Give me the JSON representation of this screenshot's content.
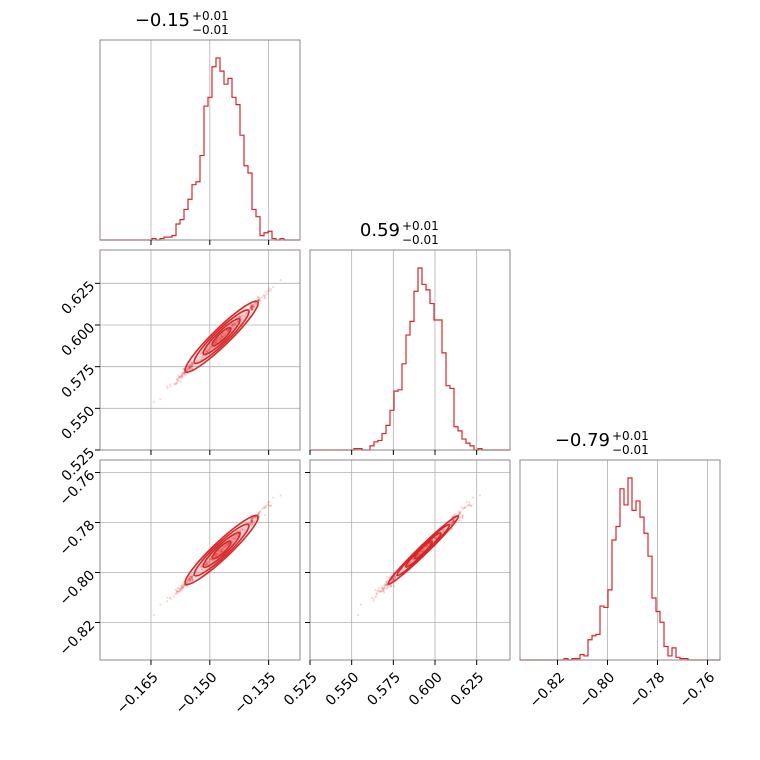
{
  "chart_data": {
    "type": "corner",
    "color": "#d62728",
    "grid": true,
    "parameters": [
      {
        "title": "−0.15",
        "title_plus": "+0.01",
        "title_minus": "−0.01",
        "range": [
          -0.178,
          -0.127
        ],
        "ticks": [
          -0.165,
          -0.15,
          -0.135
        ],
        "tick_labels": [
          "−0.165",
          "−0.150",
          "−0.135"
        ],
        "center": -0.147,
        "sigma": 0.0046
      },
      {
        "title": "0.59",
        "title_plus": "+0.01",
        "title_minus": "−0.01",
        "range": [
          0.525,
          0.645
        ],
        "ticks": [
          0.525,
          0.55,
          0.575,
          0.6,
          0.625
        ],
        "tick_labels": [
          "0.525",
          "0.550",
          "0.575",
          "0.600",
          "0.625"
        ],
        "center": 0.593,
        "sigma": 0.0105
      },
      {
        "title": "−0.79",
        "title_plus": "+0.01",
        "title_minus": "−0.01",
        "range": [
          -0.835,
          -0.755
        ],
        "ticks": [
          -0.82,
          -0.8,
          -0.78,
          -0.76
        ],
        "tick_labels": [
          "−0.82",
          "−0.80",
          "−0.78",
          "−0.76"
        ],
        "center": -0.791,
        "sigma": 0.0068
      }
    ]
  }
}
